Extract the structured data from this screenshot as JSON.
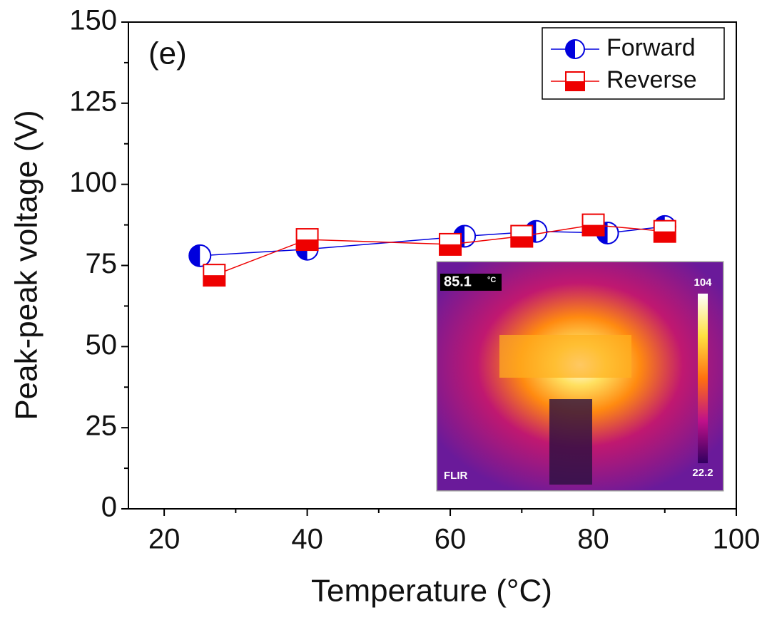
{
  "chart_data": {
    "type": "scatter",
    "xlabel": "Temperature (°C)",
    "ylabel": "Peak-peak voltage (V)",
    "annotation": "(e)",
    "xlim": [
      15,
      100
    ],
    "xticks": [
      20,
      40,
      60,
      80,
      100
    ],
    "xticks_minor": [
      30,
      50,
      70,
      90
    ],
    "ylim": [
      0,
      150
    ],
    "yticks": [
      0,
      25,
      50,
      75,
      100,
      125,
      150
    ],
    "yticks_minor": [
      12.5,
      37.5,
      62.5,
      87.5,
      112.5,
      137.5
    ],
    "legend": "upper right",
    "series": [
      {
        "name": "Forward",
        "color": "#0000dd",
        "marker": "half-circle",
        "x": [
          25,
          40,
          62,
          72,
          82,
          90
        ],
        "values": [
          78,
          80,
          84,
          85.5,
          85,
          87
        ]
      },
      {
        "name": "Reverse",
        "color": "#ee0000",
        "marker": "half-square",
        "x": [
          27,
          40,
          60,
          70,
          80,
          90
        ],
        "values": [
          72,
          83,
          81.5,
          84,
          87.5,
          85.5
        ]
      }
    ],
    "inset": {
      "reading": "85.1",
      "unit": "°C",
      "scale_max": "104",
      "scale_min": "22.2",
      "brand": "FLIR"
    }
  }
}
